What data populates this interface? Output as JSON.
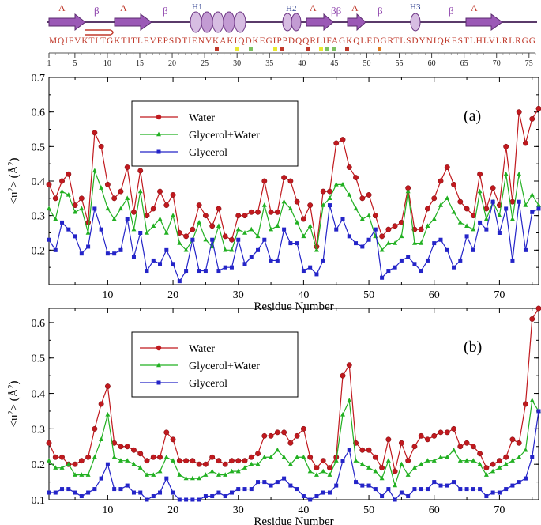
{
  "structure": {
    "labels": [
      {
        "id": "a1",
        "text": "A",
        "kind": "strand"
      },
      {
        "id": "b1",
        "text": "β",
        "kind": "turn"
      },
      {
        "id": "a2",
        "text": "A",
        "kind": "strand"
      },
      {
        "id": "b2",
        "text": "β",
        "kind": "turn"
      },
      {
        "id": "h1",
        "text": "H1",
        "kind": "helix"
      },
      {
        "id": "h2",
        "text": "H2",
        "kind": "helix"
      },
      {
        "id": "a3",
        "text": "A",
        "kind": "strand"
      },
      {
        "id": "b3",
        "text": "ββ",
        "kind": "turn"
      },
      {
        "id": "a4",
        "text": "A",
        "kind": "strand"
      },
      {
        "id": "b4",
        "text": "β",
        "kind": "turn"
      },
      {
        "id": "h3",
        "text": "H3",
        "kind": "helix"
      },
      {
        "id": "b5",
        "text": "β",
        "kind": "turn"
      },
      {
        "id": "a5",
        "text": "A",
        "kind": "strand"
      }
    ],
    "sequence": "MQIFVKTLTGKTITLEVEPSDTIENVKAKIQDKEGIPPDQQRLIFAGKQLEDGRTLSDYNIQKESTLHLVLRLRGG",
    "ruler_ticks": [
      1,
      5,
      10,
      15,
      20,
      25,
      30,
      35,
      40,
      45,
      50,
      55,
      60,
      65,
      70,
      75
    ],
    "marker_colors": {
      "red": "#c0392b",
      "yellow": "#e8e830",
      "green": "#7cc060",
      "orange": "#e07b20"
    },
    "accent_colors": {
      "strand": "#9b59b6",
      "label_red": "#c0392b",
      "label_blue": "#2c3e8f",
      "axis": "#000000"
    }
  },
  "chart_data": [
    {
      "type": "line",
      "panel_label": "(a)",
      "title": "",
      "xlabel": "Residue Number",
      "ylabel": "<u²> (Å²)",
      "ylabel_base": "<u",
      "ylabel_exp": "2",
      "ylabel_unit": "> (Å",
      "ylabel_unit_exp": "2",
      "ylabel_close": ")",
      "xlim": [
        1,
        76
      ],
      "ylim": [
        0.1,
        0.7
      ],
      "xticks": [
        10,
        20,
        30,
        40,
        50,
        60,
        70
      ],
      "yticks": [
        0.2,
        0.3,
        0.4,
        0.5,
        0.6,
        0.7
      ],
      "ytick_labels": [
        "0.2",
        "0.3",
        "0.4",
        "0.5",
        "0.6",
        "0.7"
      ],
      "legend_position": "top-left",
      "x": [
        1,
        2,
        3,
        4,
        5,
        6,
        7,
        8,
        9,
        10,
        11,
        12,
        13,
        14,
        15,
        16,
        17,
        18,
        19,
        20,
        21,
        22,
        23,
        24,
        25,
        26,
        27,
        28,
        29,
        30,
        31,
        32,
        33,
        34,
        35,
        36,
        37,
        38,
        39,
        40,
        41,
        42,
        43,
        44,
        45,
        46,
        47,
        48,
        49,
        50,
        51,
        52,
        53,
        54,
        55,
        56,
        57,
        58,
        59,
        60,
        61,
        62,
        63,
        64,
        65,
        66,
        67,
        68,
        69,
        70,
        71,
        72,
        73,
        74,
        75,
        76
      ],
      "series": [
        {
          "name": "Water",
          "color": "#c0191e",
          "marker": "circle",
          "values": [
            0.39,
            0.35,
            0.4,
            0.42,
            0.33,
            0.35,
            0.28,
            0.54,
            0.5,
            0.39,
            0.35,
            0.37,
            0.44,
            0.31,
            0.43,
            0.3,
            0.32,
            0.37,
            0.33,
            0.36,
            0.25,
            0.24,
            0.26,
            0.33,
            0.3,
            0.27,
            0.32,
            0.24,
            0.23,
            0.3,
            0.3,
            0.31,
            0.31,
            0.4,
            0.31,
            0.31,
            0.41,
            0.4,
            0.34,
            0.29,
            0.33,
            0.21,
            0.37,
            0.37,
            0.51,
            0.52,
            0.44,
            0.41,
            0.35,
            0.36,
            0.3,
            0.24,
            0.26,
            0.27,
            0.28,
            0.38,
            0.26,
            0.26,
            0.32,
            0.35,
            0.4,
            0.44,
            0.39,
            0.34,
            0.32,
            0.3,
            0.42,
            0.32,
            0.38,
            0.33,
            0.5,
            0.34,
            0.6,
            0.51,
            0.58,
            0.61
          ]
        },
        {
          "name": "Glycerol+Water",
          "color": "#22b022",
          "marker": "triangle",
          "values": [
            0.32,
            0.29,
            0.37,
            0.36,
            0.31,
            0.32,
            0.25,
            0.43,
            0.38,
            0.32,
            0.29,
            0.32,
            0.35,
            0.26,
            0.37,
            0.25,
            0.27,
            0.29,
            0.25,
            0.3,
            0.22,
            0.2,
            0.23,
            0.28,
            0.23,
            0.21,
            0.27,
            0.2,
            0.2,
            0.26,
            0.25,
            0.26,
            0.24,
            0.33,
            0.26,
            0.27,
            0.34,
            0.32,
            0.28,
            0.24,
            0.27,
            0.2,
            0.33,
            0.35,
            0.39,
            0.39,
            0.36,
            0.32,
            0.29,
            0.3,
            0.24,
            0.2,
            0.22,
            0.22,
            0.24,
            0.37,
            0.22,
            0.22,
            0.27,
            0.29,
            0.33,
            0.35,
            0.31,
            0.28,
            0.27,
            0.26,
            0.37,
            0.29,
            0.34,
            0.3,
            0.42,
            0.29,
            0.42,
            0.33,
            0.36,
            0.33
          ]
        },
        {
          "name": "Glycerol",
          "color": "#2424c8",
          "marker": "square",
          "values": [
            0.23,
            0.2,
            0.28,
            0.26,
            0.24,
            0.19,
            0.21,
            0.32,
            0.26,
            0.19,
            0.19,
            0.2,
            0.29,
            0.18,
            0.25,
            0.14,
            0.17,
            0.16,
            0.2,
            0.16,
            0.11,
            0.14,
            0.23,
            0.14,
            0.14,
            0.23,
            0.14,
            0.15,
            0.15,
            0.23,
            0.16,
            0.18,
            0.2,
            0.23,
            0.17,
            0.17,
            0.26,
            0.22,
            0.22,
            0.14,
            0.15,
            0.13,
            0.17,
            0.33,
            0.26,
            0.29,
            0.24,
            0.22,
            0.21,
            0.23,
            0.26,
            0.12,
            0.14,
            0.15,
            0.17,
            0.18,
            0.16,
            0.14,
            0.17,
            0.22,
            0.23,
            0.2,
            0.15,
            0.17,
            0.24,
            0.2,
            0.28,
            0.26,
            0.34,
            0.25,
            0.32,
            0.17,
            0.34,
            0.2,
            0.31,
            0.32
          ]
        }
      ]
    },
    {
      "type": "line",
      "panel_label": "(b)",
      "title": "",
      "xlabel": "Residue Number",
      "ylabel": "<u²> (Å²)",
      "ylabel_base": "<u",
      "ylabel_exp": "2",
      "ylabel_unit": "> (Å",
      "ylabel_unit_exp": "2",
      "ylabel_close": ")",
      "xlim": [
        1,
        76
      ],
      "ylim": [
        0.1,
        0.64
      ],
      "xticks": [
        10,
        20,
        30,
        40,
        50,
        60,
        70
      ],
      "yticks": [
        0.1,
        0.2,
        0.3,
        0.4,
        0.5,
        0.6
      ],
      "ytick_labels": [
        "0.1",
        "0.2",
        "0.3",
        "0.4",
        "0.5",
        "0.6"
      ],
      "legend_position": "top-left",
      "x": [
        1,
        2,
        3,
        4,
        5,
        6,
        7,
        8,
        9,
        10,
        11,
        12,
        13,
        14,
        15,
        16,
        17,
        18,
        19,
        20,
        21,
        22,
        23,
        24,
        25,
        26,
        27,
        28,
        29,
        30,
        31,
        32,
        33,
        34,
        35,
        36,
        37,
        38,
        39,
        40,
        41,
        42,
        43,
        44,
        45,
        46,
        47,
        48,
        49,
        50,
        51,
        52,
        53,
        54,
        55,
        56,
        57,
        58,
        59,
        60,
        61,
        62,
        63,
        64,
        65,
        66,
        67,
        68,
        69,
        70,
        71,
        72,
        73,
        74,
        75,
        76
      ],
      "series": [
        {
          "name": "Water",
          "color": "#c0191e",
          "marker": "circle",
          "values": [
            0.26,
            0.22,
            0.22,
            0.2,
            0.2,
            0.21,
            0.22,
            0.3,
            0.37,
            0.42,
            0.26,
            0.25,
            0.25,
            0.24,
            0.23,
            0.21,
            0.22,
            0.22,
            0.29,
            0.27,
            0.21,
            0.21,
            0.21,
            0.2,
            0.2,
            0.22,
            0.21,
            0.2,
            0.21,
            0.21,
            0.21,
            0.22,
            0.23,
            0.28,
            0.28,
            0.29,
            0.29,
            0.26,
            0.28,
            0.3,
            0.22,
            0.19,
            0.21,
            0.19,
            0.22,
            0.45,
            0.48,
            0.26,
            0.24,
            0.24,
            0.22,
            0.19,
            0.27,
            0.18,
            0.26,
            0.21,
            0.25,
            0.28,
            0.27,
            0.28,
            0.29,
            0.29,
            0.3,
            0.25,
            0.26,
            0.25,
            0.23,
            0.19,
            0.2,
            0.21,
            0.22,
            0.27,
            0.26,
            0.37,
            0.61,
            0.64
          ]
        },
        {
          "name": "Glycerol+Water",
          "color": "#22b022",
          "marker": "triangle",
          "values": [
            0.21,
            0.19,
            0.19,
            0.2,
            0.17,
            0.17,
            0.17,
            0.22,
            0.27,
            0.34,
            0.22,
            0.21,
            0.21,
            0.2,
            0.19,
            0.17,
            0.17,
            0.18,
            0.22,
            0.21,
            0.17,
            0.16,
            0.16,
            0.16,
            0.17,
            0.18,
            0.17,
            0.17,
            0.18,
            0.18,
            0.19,
            0.2,
            0.2,
            0.22,
            0.22,
            0.24,
            0.22,
            0.2,
            0.22,
            0.22,
            0.18,
            0.17,
            0.18,
            0.17,
            0.21,
            0.34,
            0.38,
            0.21,
            0.2,
            0.19,
            0.18,
            0.16,
            0.21,
            0.14,
            0.2,
            0.17,
            0.19,
            0.2,
            0.21,
            0.21,
            0.22,
            0.22,
            0.24,
            0.21,
            0.21,
            0.21,
            0.2,
            0.17,
            0.18,
            0.19,
            0.2,
            0.21,
            0.22,
            0.24,
            0.38,
            0.35
          ]
        },
        {
          "name": "Glycerol",
          "color": "#2424c8",
          "marker": "square",
          "values": [
            0.12,
            0.12,
            0.13,
            0.13,
            0.12,
            0.11,
            0.12,
            0.13,
            0.16,
            0.2,
            0.13,
            0.13,
            0.14,
            0.12,
            0.12,
            0.1,
            0.11,
            0.12,
            0.16,
            0.12,
            0.1,
            0.1,
            0.1,
            0.1,
            0.11,
            0.11,
            0.12,
            0.11,
            0.12,
            0.13,
            0.13,
            0.13,
            0.15,
            0.15,
            0.14,
            0.15,
            0.16,
            0.14,
            0.13,
            0.11,
            0.1,
            0.11,
            0.12,
            0.12,
            0.14,
            0.21,
            0.24,
            0.15,
            0.14,
            0.14,
            0.13,
            0.11,
            0.13,
            0.1,
            0.12,
            0.11,
            0.13,
            0.13,
            0.13,
            0.15,
            0.14,
            0.14,
            0.15,
            0.13,
            0.13,
            0.13,
            0.13,
            0.11,
            0.12,
            0.12,
            0.13,
            0.14,
            0.15,
            0.16,
            0.22,
            0.35
          ]
        }
      ]
    }
  ]
}
